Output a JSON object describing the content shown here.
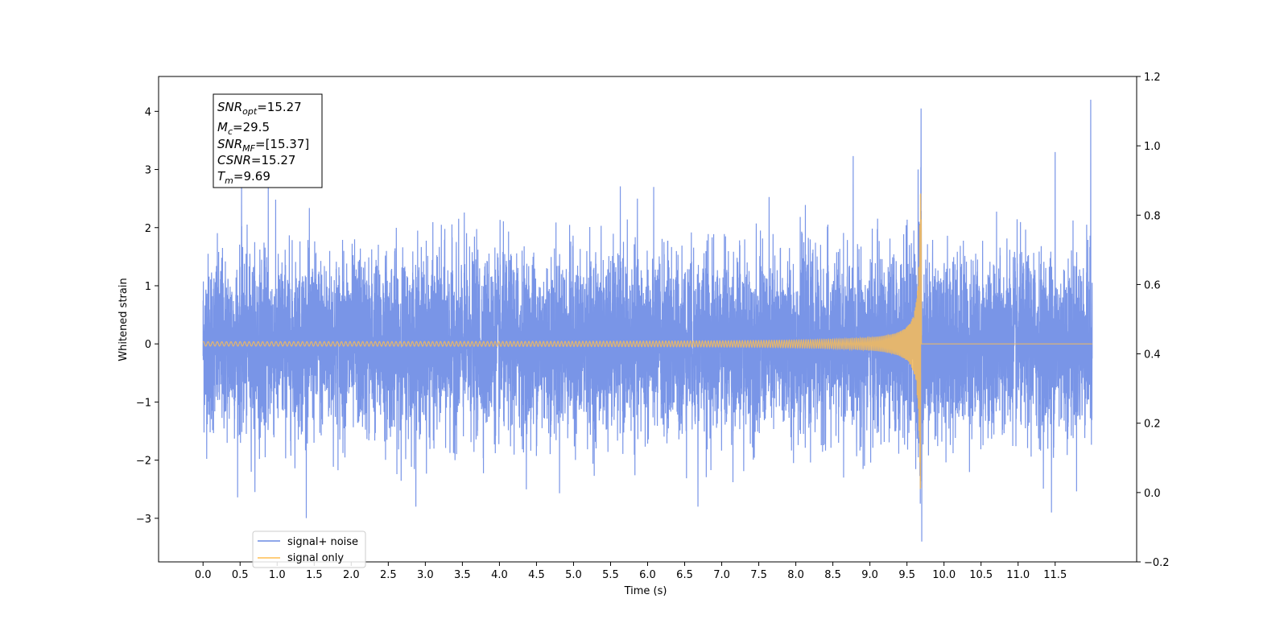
{
  "chart_data": {
    "type": "line",
    "title": "",
    "xlabel": "Time (s)",
    "ylabel": "Whitened strain",
    "xlim": [
      -0.6,
      12.6
    ],
    "ylim": [
      -3.75,
      4.6
    ],
    "y2lim": [
      -0.2,
      1.2
    ],
    "grid": false,
    "legend_placement": "lower-left",
    "x_ticks": [
      "0.0",
      "0.5",
      "1.0",
      "1.5",
      "2.0",
      "2.5",
      "3.0",
      "3.5",
      "4.0",
      "4.5",
      "5.0",
      "5.5",
      "6.0",
      "6.5",
      "7.0",
      "7.5",
      "8.0",
      "8.5",
      "9.0",
      "9.5",
      "10.0",
      "10.5",
      "11.0",
      "11.5"
    ],
    "y_ticks": [
      "−3",
      "−2",
      "−1",
      "0",
      "1",
      "2",
      "3",
      "4"
    ],
    "y2_ticks": [
      "−0.2",
      "0.0",
      "0.2",
      "0.4",
      "0.6",
      "0.8",
      "1.0",
      "1.2"
    ],
    "series": [
      {
        "name": "signal+ noise",
        "color": "#6a8ae4",
        "x_range": [
          0.0,
          12.0
        ],
        "noise_sigma": 0.75,
        "spikes": [
          {
            "x": 9.69,
            "y": 4.05
          },
          {
            "x": 9.7,
            "y": -3.4
          },
          {
            "x": 11.98,
            "y": 4.2
          },
          {
            "x": 11.5,
            "y": 3.3
          },
          {
            "x": 11.45,
            "y": -2.9
          },
          {
            "x": 6.68,
            "y": -2.8
          },
          {
            "x": 0.52,
            "y": 2.75
          },
          {
            "x": 0.88,
            "y": 2.7
          },
          {
            "x": 9.65,
            "y": 3.0
          }
        ]
      },
      {
        "name": "signal only",
        "color": "#ffbe50",
        "x_range": [
          0.0,
          12.0
        ],
        "merger_time": 9.69,
        "peak_amplitude": 2.6,
        "min_amplitude": 0.03,
        "baseline": 0.0
      }
    ]
  },
  "annotation": {
    "snr_opt": {
      "sym": "SNR",
      "sub": "opt",
      "value": "=15.27"
    },
    "mc": {
      "sym": "M",
      "sub": "c",
      "value": "=29.5"
    },
    "snr_mf": {
      "sym": "SNR",
      "sub": "MF",
      "value": "=[15.37]"
    },
    "csnr": {
      "sym": "CSNR",
      "sub": "",
      "value": "=15.27"
    },
    "tm": {
      "sym": "T",
      "sub": "m",
      "value": "=9.69"
    }
  },
  "legend": {
    "items": [
      "signal+ noise",
      "signal only"
    ]
  }
}
